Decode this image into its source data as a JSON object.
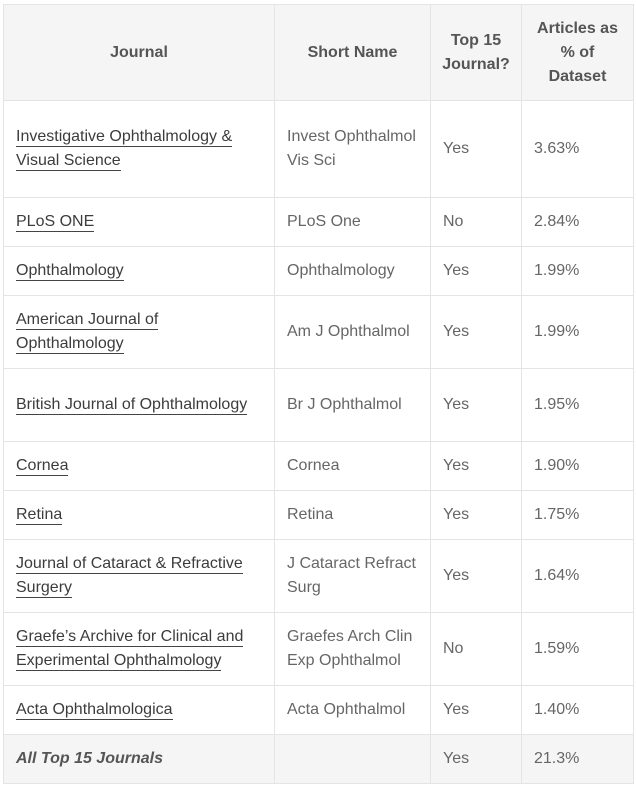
{
  "headers": {
    "journal": "Journal",
    "short_name": "Short Name",
    "top15": "Top 15 Journal?",
    "articles_pct": "Articles as % of Dataset"
  },
  "rows": [
    {
      "journal": "Investigative Ophthalmology & Visual Science",
      "short_name": "Invest Ophthalmol Vis Sci",
      "top15": "Yes",
      "pct": "3.63%"
    },
    {
      "journal": "PLoS ONE",
      "short_name": "PLoS One",
      "top15": "No",
      "pct": "2.84%"
    },
    {
      "journal": "Ophthalmology",
      "short_name": "Ophthalmology",
      "top15": "Yes",
      "pct": "1.99%"
    },
    {
      "journal": "American Journal of Ophthalmology",
      "short_name": "Am J Ophthalmol",
      "top15": "Yes",
      "pct": "1.99%"
    },
    {
      "journal": "British Journal of Ophthalmology",
      "short_name": "Br J Ophthalmol",
      "top15": "Yes",
      "pct": "1.95%"
    },
    {
      "journal": "Cornea",
      "short_name": "Cornea",
      "top15": "Yes",
      "pct": "1.90%"
    },
    {
      "journal": "Retina",
      "short_name": "Retina",
      "top15": "Yes",
      "pct": "1.75%"
    },
    {
      "journal": "Journal of Cataract & Refractive Surgery",
      "short_name": "J Cataract Refract Surg",
      "top15": "Yes",
      "pct": "1.64%"
    },
    {
      "journal": "Graefe’s Archive for Clinical and Experimental Ophthalmology",
      "short_name": "Graefes Arch Clin Exp Ophthalmol",
      "top15": "No",
      "pct": "1.59%"
    },
    {
      "journal": "Acta Ophthalmologica",
      "short_name": "Acta Ophthalmol",
      "top15": "Yes",
      "pct": "1.40%"
    }
  ],
  "total": {
    "label": "All Top 15 Journals",
    "short_name": "",
    "top15": "Yes",
    "pct": "21.3%"
  }
}
